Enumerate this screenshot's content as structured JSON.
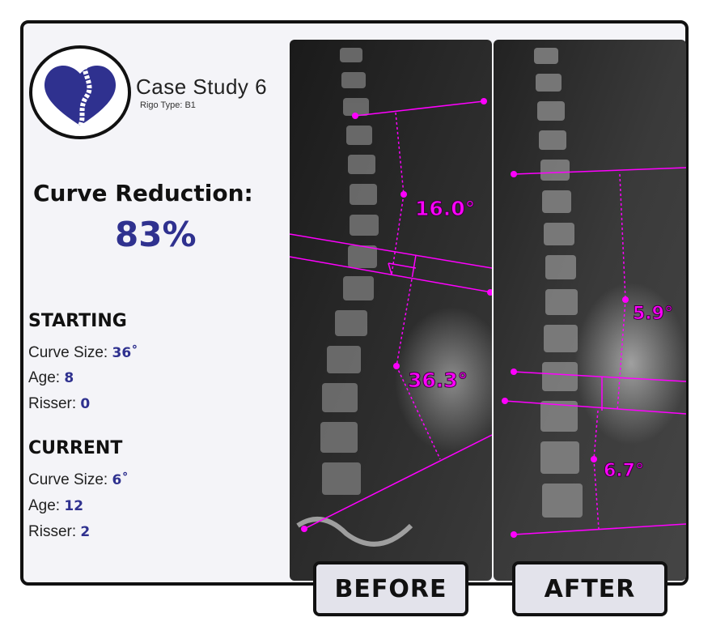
{
  "title": "Case Study 6",
  "rigo_type": "Rigo Type: B1",
  "curve_reduction": {
    "label": "Curve Reduction:",
    "value": "83%"
  },
  "starting": {
    "heading": "STARTING",
    "curve_size_label": "Curve Size: ",
    "curve_size": "36˚",
    "age_label": "Age: ",
    "age": "8",
    "risser_label": "Risser: ",
    "risser": "0"
  },
  "current": {
    "heading": "CURRENT",
    "curve_size_label": "Curve Size: ",
    "curve_size": "6˚",
    "age_label": "Age: ",
    "age": "12",
    "risser_label": "Risser: ",
    "risser": "2"
  },
  "before": {
    "label": "BEFORE",
    "angles": [
      "16.0°",
      "36.3°"
    ]
  },
  "after": {
    "label": "AFTER",
    "angles": [
      "5.9°",
      "6.7°"
    ]
  },
  "colors": {
    "accent": "#2f318f",
    "measure": "#ff00ff",
    "border": "#111111"
  },
  "logo_icon": "heart-spine-icon"
}
